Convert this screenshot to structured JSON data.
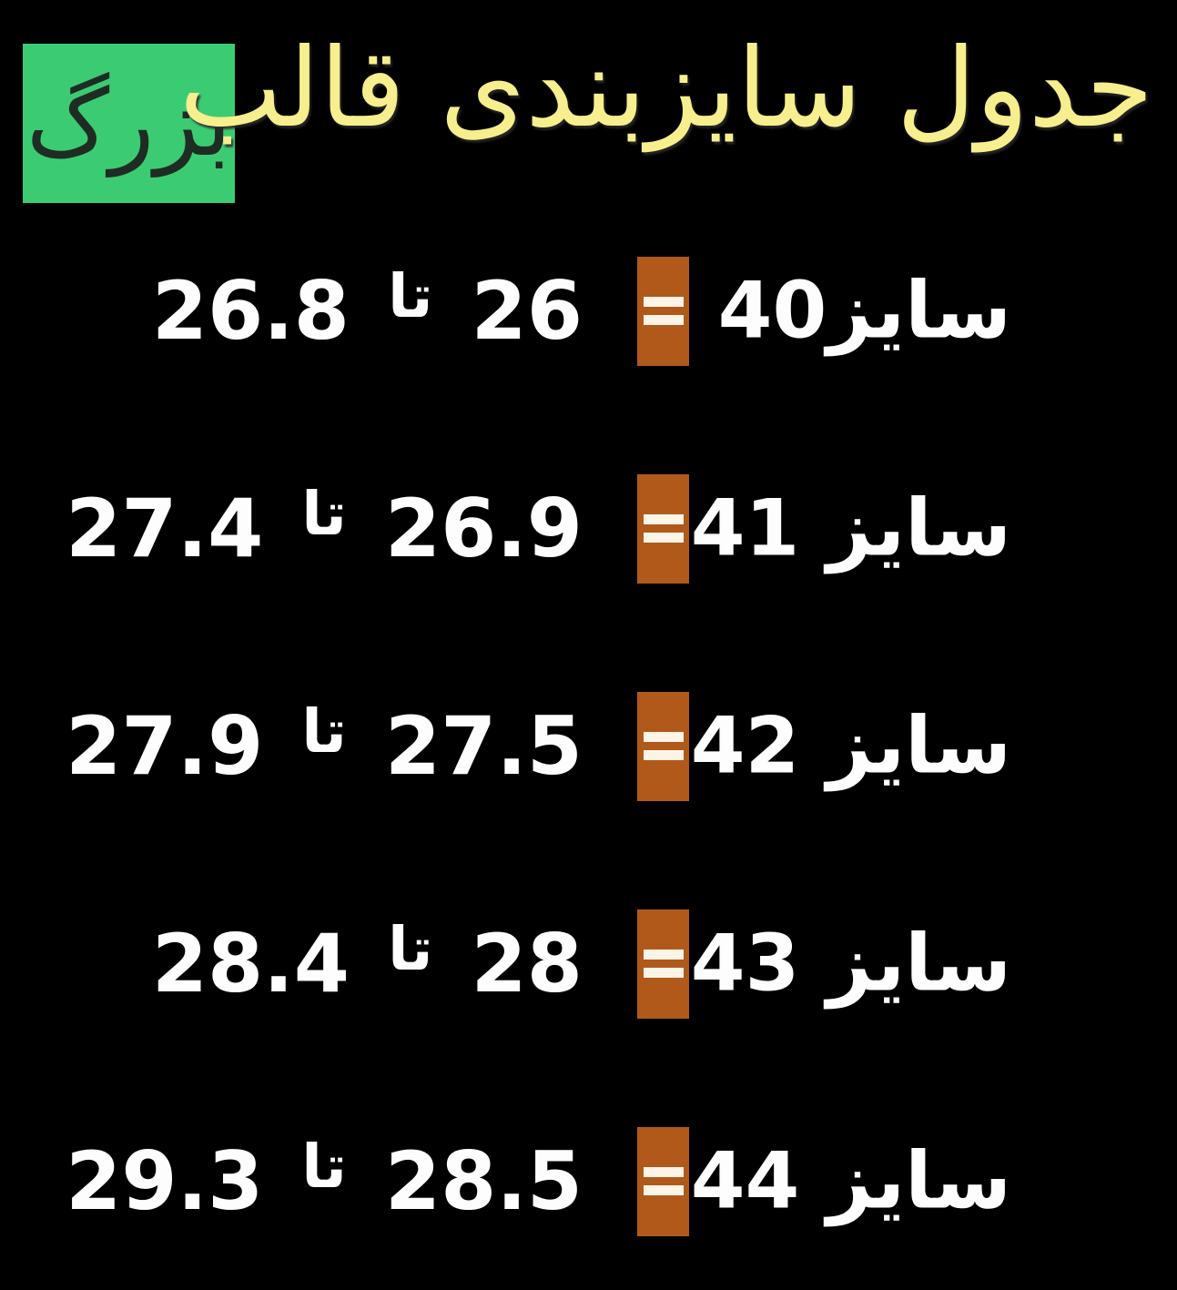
{
  "header": {
    "title": "جدول سایزبندی قالب",
    "badge": "بزرگ",
    "title_color": "#f7ee8e",
    "badge_bg": "#3bcc73",
    "badge_text_color": "#1e2c23"
  },
  "table": {
    "equals_icon": "=",
    "accent_orange": "#b0591b",
    "equals_bar_color": "#fcf4e6",
    "text_color": "#fdfdfd",
    "background": "#000000",
    "rows": [
      {
        "size": "سایز40",
        "from": "26",
        "separator": "تا",
        "to": "26.8"
      },
      {
        "size": "سایز 41",
        "from": "26.9",
        "separator": "تا",
        "to": "27.4"
      },
      {
        "size": "سایز 42",
        "from": "27.5",
        "separator": "تا",
        "to": "27.9"
      },
      {
        "size": "سایز 43",
        "from": "28",
        "separator": "تا",
        "to": "28.4"
      },
      {
        "size": "سایز 44",
        "from": "28.5",
        "separator": "تا",
        "to": "29.3"
      }
    ]
  }
}
